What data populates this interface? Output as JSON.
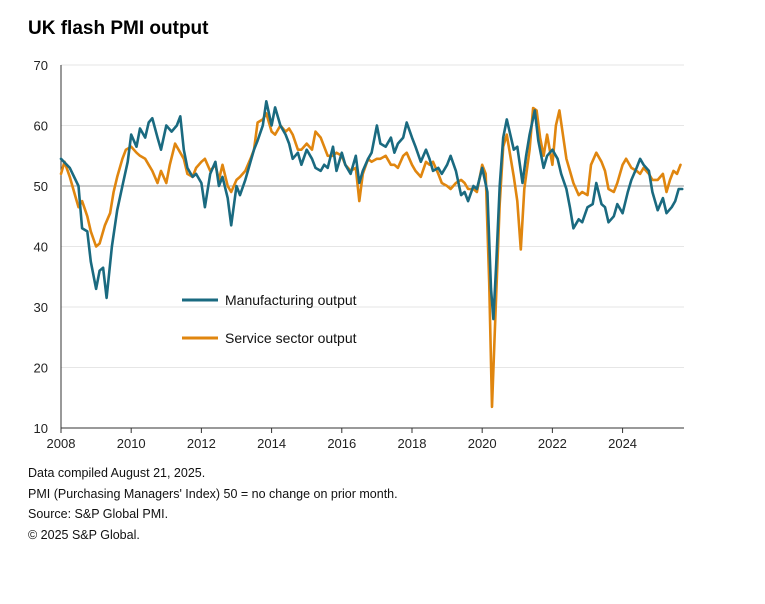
{
  "title": "UK flash PMI output",
  "notes": [
    "Data compiled August 21, 2025.",
    "PMI  (Purchasing Managers' Index) 50 = no change on prior month.",
    "Source: S&P Global PMI.",
    "© 2025 S&P Global."
  ],
  "colors": {
    "manufacturing": "#1a6a80",
    "services": "#e0860f",
    "reference": "#999999",
    "grid": "#e6e6e6"
  },
  "chart_data": {
    "type": "line",
    "title": "UK flash PMI output",
    "xlabel": "",
    "ylabel": "",
    "xlim": [
      2008,
      2025.75
    ],
    "ylim": [
      10,
      70
    ],
    "yticks": [
      10,
      20,
      30,
      40,
      50,
      60,
      70
    ],
    "xticks": [
      2008,
      2010,
      2012,
      2014,
      2016,
      2018,
      2020,
      2022,
      2024
    ],
    "reference_line": 50,
    "grid": true,
    "legend_position": "center-left",
    "series": [
      {
        "name": "Manufacturing output",
        "color": "#1a6a80",
        "points": [
          [
            2008.0,
            54.5
          ],
          [
            2008.25,
            53.0
          ],
          [
            2008.5,
            50.0
          ],
          [
            2008.6,
            43.0
          ],
          [
            2008.75,
            42.5
          ],
          [
            2008.85,
            37.5
          ],
          [
            2009.0,
            33.0
          ],
          [
            2009.1,
            36.0
          ],
          [
            2009.2,
            36.5
          ],
          [
            2009.3,
            31.5
          ],
          [
            2009.45,
            40.0
          ],
          [
            2009.6,
            46.0
          ],
          [
            2009.75,
            50.0
          ],
          [
            2009.9,
            54.0
          ],
          [
            2010.0,
            58.5
          ],
          [
            2010.15,
            56.5
          ],
          [
            2010.25,
            59.5
          ],
          [
            2010.4,
            58.0
          ],
          [
            2010.5,
            60.5
          ],
          [
            2010.6,
            61.2
          ],
          [
            2010.75,
            58.0
          ],
          [
            2010.85,
            56.0
          ],
          [
            2011.0,
            60.0
          ],
          [
            2011.15,
            59.0
          ],
          [
            2011.3,
            60.0
          ],
          [
            2011.4,
            61.5
          ],
          [
            2011.5,
            56.0
          ],
          [
            2011.6,
            53.0
          ],
          [
            2011.75,
            51.5
          ],
          [
            2011.85,
            52.0
          ],
          [
            2012.0,
            50.5
          ],
          [
            2012.1,
            46.5
          ],
          [
            2012.25,
            52.0
          ],
          [
            2012.4,
            54.0
          ],
          [
            2012.5,
            50.0
          ],
          [
            2012.6,
            51.5
          ],
          [
            2012.75,
            48.0
          ],
          [
            2012.85,
            43.5
          ],
          [
            2013.0,
            50.0
          ],
          [
            2013.1,
            48.5
          ],
          [
            2013.25,
            51.0
          ],
          [
            2013.4,
            54.0
          ],
          [
            2013.5,
            56.0
          ],
          [
            2013.6,
            57.5
          ],
          [
            2013.75,
            60.0
          ],
          [
            2013.85,
            64.0
          ],
          [
            2014.0,
            60.0
          ],
          [
            2014.1,
            63.0
          ],
          [
            2014.25,
            60.0
          ],
          [
            2014.4,
            58.5
          ],
          [
            2014.5,
            57.0
          ],
          [
            2014.6,
            54.5
          ],
          [
            2014.75,
            55.5
          ],
          [
            2014.85,
            53.5
          ],
          [
            2015.0,
            56.0
          ],
          [
            2015.15,
            54.5
          ],
          [
            2015.25,
            53.0
          ],
          [
            2015.4,
            52.5
          ],
          [
            2015.5,
            53.5
          ],
          [
            2015.6,
            53.0
          ],
          [
            2015.75,
            56.5
          ],
          [
            2015.85,
            52.5
          ],
          [
            2016.0,
            55.5
          ],
          [
            2016.1,
            53.5
          ],
          [
            2016.25,
            52.0
          ],
          [
            2016.4,
            55.0
          ],
          [
            2016.5,
            50.5
          ],
          [
            2016.6,
            52.5
          ],
          [
            2016.75,
            54.5
          ],
          [
            2016.85,
            55.5
          ],
          [
            2017.0,
            60.0
          ],
          [
            2017.1,
            57.0
          ],
          [
            2017.25,
            56.5
          ],
          [
            2017.4,
            58.0
          ],
          [
            2017.5,
            55.5
          ],
          [
            2017.6,
            57.0
          ],
          [
            2017.75,
            58.0
          ],
          [
            2017.85,
            60.5
          ],
          [
            2018.0,
            58.0
          ],
          [
            2018.1,
            56.5
          ],
          [
            2018.25,
            54.0
          ],
          [
            2018.4,
            56.0
          ],
          [
            2018.5,
            54.5
          ],
          [
            2018.6,
            52.5
          ],
          [
            2018.75,
            53.0
          ],
          [
            2018.85,
            52.0
          ],
          [
            2019.0,
            53.5
          ],
          [
            2019.1,
            55.0
          ],
          [
            2019.25,
            52.5
          ],
          [
            2019.4,
            48.5
          ],
          [
            2019.5,
            49.0
          ],
          [
            2019.6,
            47.5
          ],
          [
            2019.75,
            50.0
          ],
          [
            2019.85,
            49.5
          ],
          [
            2020.0,
            53.0
          ],
          [
            2020.15,
            49.0
          ],
          [
            2020.25,
            33.0
          ],
          [
            2020.32,
            28.0
          ],
          [
            2020.4,
            37.0
          ],
          [
            2020.5,
            50.0
          ],
          [
            2020.6,
            58.0
          ],
          [
            2020.7,
            61.0
          ],
          [
            2020.8,
            58.5
          ],
          [
            2020.9,
            56.0
          ],
          [
            2021.0,
            56.5
          ],
          [
            2021.15,
            50.5
          ],
          [
            2021.25,
            55.0
          ],
          [
            2021.35,
            58.5
          ],
          [
            2021.5,
            62.5
          ],
          [
            2021.6,
            57.5
          ],
          [
            2021.75,
            53.0
          ],
          [
            2021.85,
            55.0
          ],
          [
            2022.0,
            56.0
          ],
          [
            2022.15,
            54.5
          ],
          [
            2022.25,
            52.0
          ],
          [
            2022.4,
            49.5
          ],
          [
            2022.5,
            46.5
          ],
          [
            2022.6,
            43.0
          ],
          [
            2022.75,
            44.5
          ],
          [
            2022.85,
            44.0
          ],
          [
            2023.0,
            46.5
          ],
          [
            2023.15,
            47.0
          ],
          [
            2023.25,
            50.5
          ],
          [
            2023.4,
            47.0
          ],
          [
            2023.5,
            46.5
          ],
          [
            2023.6,
            44.0
          ],
          [
            2023.75,
            45.0
          ],
          [
            2023.85,
            47.0
          ],
          [
            2024.0,
            45.5
          ],
          [
            2024.15,
            49.0
          ],
          [
            2024.25,
            51.0
          ],
          [
            2024.4,
            53.0
          ],
          [
            2024.5,
            54.5
          ],
          [
            2024.6,
            53.5
          ],
          [
            2024.75,
            52.5
          ],
          [
            2024.85,
            49.0
          ],
          [
            2025.0,
            46.0
          ],
          [
            2025.15,
            48.0
          ],
          [
            2025.25,
            45.5
          ],
          [
            2025.4,
            46.5
          ],
          [
            2025.5,
            47.5
          ],
          [
            2025.6,
            49.5
          ],
          [
            2025.7,
            49.5
          ]
        ]
      },
      {
        "name": "Service sector output",
        "color": "#e0860f",
        "points": [
          [
            2008.0,
            52.0
          ],
          [
            2008.1,
            54.0
          ],
          [
            2008.25,
            51.5
          ],
          [
            2008.4,
            48.5
          ],
          [
            2008.5,
            46.5
          ],
          [
            2008.6,
            47.5
          ],
          [
            2008.75,
            45.0
          ],
          [
            2008.85,
            42.5
          ],
          [
            2009.0,
            40.0
          ],
          [
            2009.1,
            40.5
          ],
          [
            2009.25,
            43.5
          ],
          [
            2009.4,
            45.5
          ],
          [
            2009.5,
            49.0
          ],
          [
            2009.6,
            51.5
          ],
          [
            2009.75,
            54.5
          ],
          [
            2009.85,
            56.0
          ],
          [
            2010.0,
            56.5
          ],
          [
            2010.15,
            55.5
          ],
          [
            2010.25,
            55.0
          ],
          [
            2010.4,
            54.5
          ],
          [
            2010.5,
            53.5
          ],
          [
            2010.6,
            52.5
          ],
          [
            2010.75,
            50.5
          ],
          [
            2010.85,
            52.5
          ],
          [
            2011.0,
            50.5
          ],
          [
            2011.1,
            53.5
          ],
          [
            2011.25,
            57.0
          ],
          [
            2011.4,
            55.5
          ],
          [
            2011.5,
            54.5
          ],
          [
            2011.6,
            52.0
          ],
          [
            2011.75,
            51.5
          ],
          [
            2011.85,
            53.0
          ],
          [
            2012.0,
            54.0
          ],
          [
            2012.1,
            54.5
          ],
          [
            2012.25,
            52.5
          ],
          [
            2012.4,
            53.5
          ],
          [
            2012.5,
            51.0
          ],
          [
            2012.6,
            53.5
          ],
          [
            2012.75,
            50.0
          ],
          [
            2012.85,
            49.0
          ],
          [
            2013.0,
            51.0
          ],
          [
            2013.1,
            51.5
          ],
          [
            2013.25,
            52.5
          ],
          [
            2013.4,
            54.5
          ],
          [
            2013.5,
            56.0
          ],
          [
            2013.6,
            60.5
          ],
          [
            2013.75,
            61.0
          ],
          [
            2013.85,
            62.0
          ],
          [
            2014.0,
            59.0
          ],
          [
            2014.1,
            58.5
          ],
          [
            2014.25,
            60.0
          ],
          [
            2014.4,
            59.0
          ],
          [
            2014.5,
            59.5
          ],
          [
            2014.6,
            58.5
          ],
          [
            2014.75,
            56.0
          ],
          [
            2014.85,
            56.0
          ],
          [
            2015.0,
            57.0
          ],
          [
            2015.15,
            56.0
          ],
          [
            2015.25,
            59.0
          ],
          [
            2015.4,
            58.0
          ],
          [
            2015.5,
            56.5
          ],
          [
            2015.6,
            55.0
          ],
          [
            2015.75,
            55.0
          ],
          [
            2015.85,
            55.5
          ],
          [
            2016.0,
            55.0
          ],
          [
            2016.1,
            53.5
          ],
          [
            2016.25,
            52.5
          ],
          [
            2016.4,
            53.0
          ],
          [
            2016.5,
            47.5
          ],
          [
            2016.6,
            52.0
          ],
          [
            2016.75,
            54.5
          ],
          [
            2016.85,
            54.0
          ],
          [
            2017.0,
            54.5
          ],
          [
            2017.1,
            54.5
          ],
          [
            2017.25,
            55.0
          ],
          [
            2017.4,
            53.5
          ],
          [
            2017.5,
            53.5
          ],
          [
            2017.6,
            53.0
          ],
          [
            2017.75,
            55.0
          ],
          [
            2017.85,
            55.5
          ],
          [
            2018.0,
            53.5
          ],
          [
            2018.1,
            52.5
          ],
          [
            2018.25,
            51.5
          ],
          [
            2018.4,
            54.0
          ],
          [
            2018.5,
            53.5
          ],
          [
            2018.6,
            54.0
          ],
          [
            2018.75,
            52.0
          ],
          [
            2018.85,
            50.5
          ],
          [
            2019.0,
            50.0
          ],
          [
            2019.1,
            49.5
          ],
          [
            2019.25,
            50.5
          ],
          [
            2019.4,
            51.0
          ],
          [
            2019.5,
            50.5
          ],
          [
            2019.6,
            49.5
          ],
          [
            2019.75,
            49.5
          ],
          [
            2019.85,
            49.0
          ],
          [
            2020.0,
            53.5
          ],
          [
            2020.1,
            52.0
          ],
          [
            2020.2,
            34.0
          ],
          [
            2020.28,
            13.5
          ],
          [
            2020.38,
            29.0
          ],
          [
            2020.5,
            47.0
          ],
          [
            2020.6,
            56.5
          ],
          [
            2020.7,
            58.5
          ],
          [
            2020.8,
            55.0
          ],
          [
            2020.9,
            51.5
          ],
          [
            2021.0,
            47.5
          ],
          [
            2021.1,
            39.5
          ],
          [
            2021.2,
            49.5
          ],
          [
            2021.35,
            56.0
          ],
          [
            2021.45,
            62.9
          ],
          [
            2021.55,
            62.5
          ],
          [
            2021.65,
            58.0
          ],
          [
            2021.75,
            55.0
          ],
          [
            2021.85,
            58.5
          ],
          [
            2022.0,
            53.5
          ],
          [
            2022.1,
            60.0
          ],
          [
            2022.2,
            62.5
          ],
          [
            2022.3,
            58.5
          ],
          [
            2022.4,
            54.5
          ],
          [
            2022.5,
            52.5
          ],
          [
            2022.6,
            50.5
          ],
          [
            2022.75,
            48.5
          ],
          [
            2022.85,
            49.0
          ],
          [
            2023.0,
            48.5
          ],
          [
            2023.1,
            53.5
          ],
          [
            2023.25,
            55.5
          ],
          [
            2023.4,
            54.0
          ],
          [
            2023.5,
            52.5
          ],
          [
            2023.6,
            49.5
          ],
          [
            2023.75,
            49.0
          ],
          [
            2023.85,
            50.5
          ],
          [
            2024.0,
            53.5
          ],
          [
            2024.1,
            54.5
          ],
          [
            2024.25,
            53.0
          ],
          [
            2024.4,
            52.5
          ],
          [
            2024.5,
            52.0
          ],
          [
            2024.6,
            53.0
          ],
          [
            2024.75,
            52.0
          ],
          [
            2024.85,
            51.0
          ],
          [
            2025.0,
            51.0
          ],
          [
            2025.15,
            52.0
          ],
          [
            2025.25,
            49.0
          ],
          [
            2025.35,
            51.0
          ],
          [
            2025.45,
            52.5
          ],
          [
            2025.55,
            52.0
          ],
          [
            2025.65,
            53.5
          ]
        ]
      }
    ]
  }
}
